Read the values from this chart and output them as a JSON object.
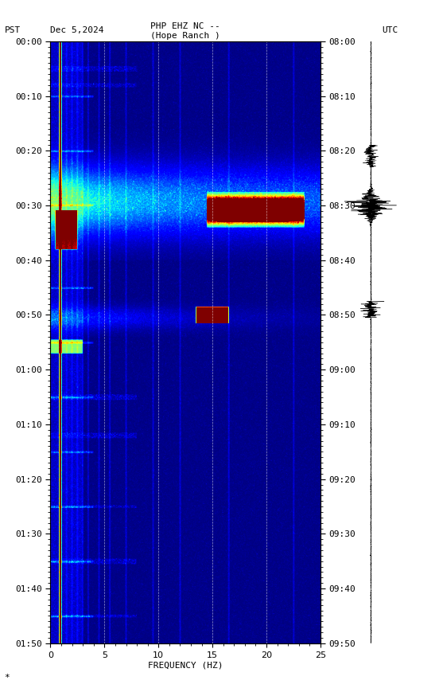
{
  "title_line1": "PHP EHZ NC --",
  "title_line2": "(Hope Ranch )",
  "left_label": "PST   Dec 5,2024",
  "right_label": "UTC",
  "xlabel": "FREQUENCY (HZ)",
  "freq_min": 0,
  "freq_max": 25,
  "time_ticks_pst": [
    "00:00",
    "00:10",
    "00:20",
    "00:30",
    "00:40",
    "00:50",
    "01:00",
    "01:10",
    "01:20",
    "01:30",
    "01:40",
    "01:50"
  ],
  "time_ticks_utc": [
    "08:00",
    "08:10",
    "08:20",
    "08:30",
    "08:40",
    "08:50",
    "09:00",
    "09:10",
    "09:20",
    "09:30",
    "09:40",
    "09:50"
  ],
  "pst_minutes": [
    0,
    10,
    20,
    30,
    40,
    50,
    60,
    70,
    80,
    90,
    100,
    110
  ],
  "fig_width": 5.52,
  "fig_height": 8.64,
  "dpi": 100
}
